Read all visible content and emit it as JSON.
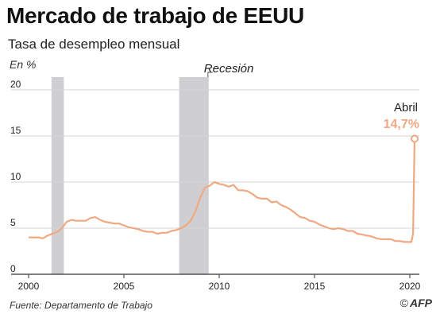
{
  "title": "Mercado de trabajo de EEUU",
  "subtitle": "Tasa de desempleo mensual",
  "source": "Fuente: Departamento de Trabajo",
  "credit": {
    "symbol": "©",
    "name": "AFP"
  },
  "colors": {
    "line": "#f0a883",
    "label": "#f0a883",
    "recession": "#cfcfd1",
    "grid": "#d6d6d6",
    "axis": "#333333",
    "text": "#222222"
  },
  "chart_data": {
    "type": "line",
    "ylabel": "En %",
    "ylim": [
      0,
      20
    ],
    "yticks": [
      0,
      5,
      10,
      15,
      20
    ],
    "xlim": [
      2000,
      2020.5
    ],
    "xticks": [
      2000,
      2005,
      2010,
      2015,
      2020
    ],
    "grid": true,
    "recession_label": "Recesión",
    "recessions": [
      [
        2001.2,
        2001.85
      ],
      [
        2007.9,
        2009.45
      ]
    ],
    "annotation": {
      "label": "Abril",
      "value_label": "14,7%",
      "x": 2020.25,
      "y": 14.7
    },
    "series": [
      {
        "points": [
          [
            2000.0,
            4.0
          ],
          [
            2000.25,
            4.0
          ],
          [
            2000.5,
            4.0
          ],
          [
            2000.75,
            3.9
          ],
          [
            2001.0,
            4.2
          ],
          [
            2001.25,
            4.4
          ],
          [
            2001.5,
            4.6
          ],
          [
            2001.75,
            5.0
          ],
          [
            2002.0,
            5.7
          ],
          [
            2002.25,
            5.9
          ],
          [
            2002.5,
            5.8
          ],
          [
            2002.75,
            5.8
          ],
          [
            2003.0,
            5.8
          ],
          [
            2003.25,
            6.1
          ],
          [
            2003.5,
            6.2
          ],
          [
            2003.75,
            5.9
          ],
          [
            2004.0,
            5.7
          ],
          [
            2004.25,
            5.6
          ],
          [
            2004.5,
            5.5
          ],
          [
            2004.75,
            5.5
          ],
          [
            2005.0,
            5.3
          ],
          [
            2005.25,
            5.1
          ],
          [
            2005.5,
            5.0
          ],
          [
            2005.75,
            4.9
          ],
          [
            2006.0,
            4.7
          ],
          [
            2006.25,
            4.6
          ],
          [
            2006.5,
            4.6
          ],
          [
            2006.75,
            4.4
          ],
          [
            2007.0,
            4.5
          ],
          [
            2007.25,
            4.5
          ],
          [
            2007.5,
            4.7
          ],
          [
            2007.75,
            4.8
          ],
          [
            2008.0,
            5.0
          ],
          [
            2008.25,
            5.3
          ],
          [
            2008.5,
            5.8
          ],
          [
            2008.75,
            6.8
          ],
          [
            2009.0,
            8.3
          ],
          [
            2009.25,
            9.4
          ],
          [
            2009.5,
            9.6
          ],
          [
            2009.75,
            10.0
          ],
          [
            2010.0,
            9.8
          ],
          [
            2010.25,
            9.7
          ],
          [
            2010.5,
            9.5
          ],
          [
            2010.75,
            9.7
          ],
          [
            2011.0,
            9.1
          ],
          [
            2011.25,
            9.1
          ],
          [
            2011.5,
            9.0
          ],
          [
            2011.75,
            8.7
          ],
          [
            2012.0,
            8.3
          ],
          [
            2012.25,
            8.2
          ],
          [
            2012.5,
            8.2
          ],
          [
            2012.75,
            7.8
          ],
          [
            2013.0,
            7.9
          ],
          [
            2013.25,
            7.5
          ],
          [
            2013.5,
            7.3
          ],
          [
            2013.75,
            7.0
          ],
          [
            2014.0,
            6.6
          ],
          [
            2014.25,
            6.2
          ],
          [
            2014.5,
            6.1
          ],
          [
            2014.75,
            5.8
          ],
          [
            2015.0,
            5.7
          ],
          [
            2015.25,
            5.4
          ],
          [
            2015.5,
            5.2
          ],
          [
            2015.75,
            5.0
          ],
          [
            2016.0,
            4.9
          ],
          [
            2016.25,
            5.0
          ],
          [
            2016.5,
            4.9
          ],
          [
            2016.75,
            4.7
          ],
          [
            2017.0,
            4.7
          ],
          [
            2017.25,
            4.4
          ],
          [
            2017.5,
            4.3
          ],
          [
            2017.75,
            4.2
          ],
          [
            2018.0,
            4.1
          ],
          [
            2018.25,
            3.9
          ],
          [
            2018.5,
            3.8
          ],
          [
            2018.75,
            3.8
          ],
          [
            2019.0,
            3.8
          ],
          [
            2019.25,
            3.6
          ],
          [
            2019.5,
            3.6
          ],
          [
            2019.75,
            3.5
          ],
          [
            2020.0,
            3.5
          ],
          [
            2020.08,
            3.5
          ],
          [
            2020.17,
            4.4
          ],
          [
            2020.25,
            14.7
          ]
        ]
      }
    ]
  }
}
